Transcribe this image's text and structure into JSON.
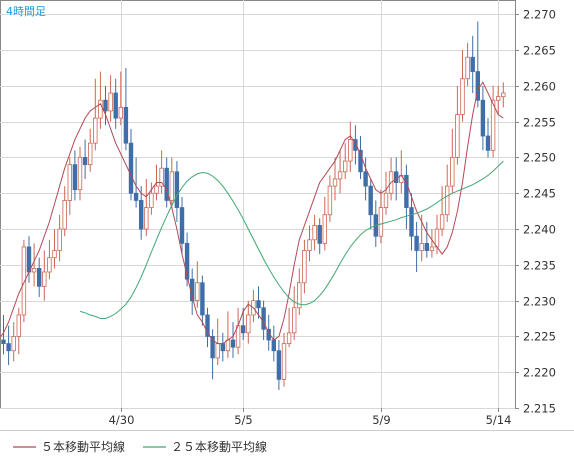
{
  "chart_data": {
    "type": "candlestick",
    "title": "4時間足",
    "y_axis_position": "right",
    "ylim": [
      2.215,
      2.272
    ],
    "yticks": [
      "2.215",
      "2.220",
      "2.225",
      "2.230",
      "2.235",
      "2.240",
      "2.245",
      "2.250",
      "2.255",
      "2.260",
      "2.265",
      "2.270"
    ],
    "xticks": [
      {
        "label": "4/30",
        "index": 23
      },
      {
        "label": "5/5",
        "index": 47
      },
      {
        "label": "5/9",
        "index": 74
      },
      {
        "label": "5/14",
        "index": 97
      }
    ],
    "grid": true,
    "legend_position": "bottom",
    "colors": {
      "up": "#cc6655",
      "down": "#3f6ea8",
      "ma5": "#b24a56",
      "ma25": "#40a870",
      "title": "#1e9bd7",
      "grid": "#d8d8d8",
      "axis": "#888888"
    },
    "series": [
      {
        "name": "５本移動平均線",
        "color": "#b24a56",
        "values": [
          2.2245,
          2.224,
          2.2245,
          2.2255,
          2.227,
          2.229,
          2.231,
          2.2325,
          2.234,
          2.2355,
          2.237,
          2.239,
          2.241,
          2.2435,
          2.246,
          2.2485,
          2.2505,
          2.2525,
          2.254,
          2.2555,
          2.2565,
          2.257,
          2.2575,
          2.256,
          2.254,
          2.252,
          2.2505,
          2.249,
          2.2475,
          2.246,
          2.245,
          2.2445,
          2.2455,
          2.2465,
          2.2465,
          2.2455,
          2.243,
          2.24,
          2.2365,
          2.2335,
          2.2305,
          2.228,
          2.227,
          2.2255,
          2.2245,
          2.224,
          2.224,
          2.2245,
          2.225,
          2.2265,
          2.2285,
          2.2295,
          2.229,
          2.228,
          2.227,
          2.2255,
          2.2245,
          2.225,
          2.2275,
          2.231,
          2.235,
          2.2385,
          2.2405,
          2.2425,
          2.2445,
          2.2465,
          2.2475,
          2.2485,
          2.2495,
          2.251,
          2.2525,
          2.253,
          2.252,
          2.2505,
          2.2485,
          2.247,
          2.2455,
          2.245,
          2.2455,
          2.2465,
          2.247,
          2.2475,
          2.2465,
          2.2445,
          2.2425,
          2.241,
          2.2395,
          2.2385,
          2.2375,
          2.2365,
          2.2375,
          2.2395,
          2.2425,
          2.2465,
          2.2515,
          2.256,
          2.2595,
          2.2605,
          2.259,
          2.2575,
          2.256,
          2.2555
        ]
      },
      {
        "name": "２５本移動平均線",
        "color": "#40a870",
        "values": [
          2.2285,
          2.2283,
          2.228,
          2.2278,
          2.2275,
          2.2275,
          2.2278,
          2.2282,
          2.2288,
          2.2295,
          2.2305,
          2.2318,
          2.2333,
          2.235,
          2.2368,
          2.2385,
          2.2402,
          2.2418,
          2.2433,
          2.2447,
          2.2458,
          2.2467,
          2.2473,
          2.2477,
          2.2479,
          2.2478,
          2.2474,
          2.2468,
          2.246,
          2.245,
          2.2439,
          2.2427,
          2.2414,
          2.24,
          2.2386,
          2.2372,
          2.2358,
          2.2345,
          2.2333,
          2.2322,
          2.2312,
          2.2304,
          2.2298,
          2.2295,
          2.2294,
          2.2296,
          2.23,
          2.2307,
          2.2316,
          2.2327,
          2.2339,
          2.2352,
          2.2364,
          2.2375,
          2.2384,
          2.2392,
          2.2398,
          2.2402,
          2.2405,
          2.2407,
          2.2409,
          2.2411,
          2.2413,
          2.2416,
          2.2418,
          2.242,
          2.2422,
          2.2425,
          2.2428,
          2.2432,
          2.2437,
          2.2442,
          2.2446,
          2.245,
          2.2453,
          2.2456,
          2.2459,
          2.2462,
          2.2466,
          2.247,
          2.2475,
          2.2481,
          2.2488,
          2.2495
        ]
      }
    ],
    "candles": [
      [
        2.2245,
        2.224,
        2.228,
        2.2225
      ],
      [
        2.224,
        2.223,
        2.2265,
        2.221
      ],
      [
        2.223,
        2.225,
        2.227,
        2.2215
      ],
      [
        2.225,
        2.228,
        2.229,
        2.2225
      ],
      [
        2.228,
        2.2375,
        2.2385,
        2.227
      ],
      [
        2.2375,
        2.234,
        2.239,
        2.2325
      ],
      [
        2.234,
        2.2345,
        2.238,
        2.232
      ],
      [
        2.2345,
        2.232,
        2.236,
        2.2305
      ],
      [
        2.232,
        2.234,
        2.237,
        2.23
      ],
      [
        2.234,
        2.236,
        2.2385,
        2.233
      ],
      [
        2.236,
        2.237,
        2.24,
        2.2345
      ],
      [
        2.237,
        2.24,
        2.242,
        2.2355
      ],
      [
        2.24,
        2.244,
        2.246,
        2.239
      ],
      [
        2.244,
        2.249,
        2.25,
        2.242
      ],
      [
        2.249,
        2.2455,
        2.251,
        2.244
      ],
      [
        2.2455,
        2.25,
        2.2515,
        2.244
      ],
      [
        2.25,
        2.249,
        2.2525,
        2.247
      ],
      [
        2.249,
        2.252,
        2.254,
        2.248
      ],
      [
        2.252,
        2.2555,
        2.261,
        2.251
      ],
      [
        2.2555,
        2.258,
        2.262,
        2.254
      ],
      [
        2.258,
        2.2565,
        2.26,
        2.2545
      ],
      [
        2.2565,
        2.259,
        2.2615,
        2.255
      ],
      [
        2.259,
        2.2555,
        2.261,
        2.254
      ],
      [
        2.2555,
        2.257,
        2.262,
        2.2545
      ],
      [
        2.257,
        2.252,
        2.2625,
        2.251
      ],
      [
        2.252,
        2.245,
        2.254,
        2.244
      ],
      [
        2.245,
        2.244,
        2.25,
        2.243
      ],
      [
        2.244,
        2.24,
        2.246,
        2.2385
      ],
      [
        2.24,
        2.243,
        2.247,
        2.239
      ],
      [
        2.243,
        2.245,
        2.2465,
        2.242
      ],
      [
        2.245,
        2.246,
        2.249,
        2.244
      ],
      [
        2.246,
        2.2485,
        2.251,
        2.245
      ],
      [
        2.2485,
        2.244,
        2.25,
        2.243
      ],
      [
        2.244,
        2.248,
        2.25,
        2.243
      ],
      [
        2.248,
        2.243,
        2.2495,
        2.241
      ],
      [
        2.243,
        2.238,
        2.2445,
        2.2365
      ],
      [
        2.238,
        2.233,
        2.2395,
        2.232
      ],
      [
        2.233,
        2.23,
        2.2345,
        2.228
      ],
      [
        2.23,
        2.2325,
        2.2355,
        2.229
      ],
      [
        2.2325,
        2.228,
        2.2335,
        2.2265
      ],
      [
        2.228,
        2.225,
        2.229,
        2.2235
      ],
      [
        2.225,
        2.222,
        2.226,
        2.219
      ],
      [
        2.222,
        2.224,
        2.2275,
        2.221
      ],
      [
        2.224,
        2.223,
        2.2255,
        2.2215
      ],
      [
        2.223,
        2.2245,
        2.2285,
        2.222
      ],
      [
        2.2245,
        2.2235,
        2.227,
        2.222
      ],
      [
        2.2235,
        2.2265,
        2.229,
        2.2225
      ],
      [
        2.2265,
        2.2255,
        2.229,
        2.2245
      ],
      [
        2.2255,
        2.228,
        2.23,
        2.224
      ],
      [
        2.228,
        2.23,
        2.2315,
        2.227
      ],
      [
        2.23,
        2.229,
        2.232,
        2.2275
      ],
      [
        2.229,
        2.226,
        2.23,
        2.2245
      ],
      [
        2.226,
        2.2245,
        2.228,
        2.223
      ],
      [
        2.2245,
        2.223,
        2.2265,
        2.2215
      ],
      [
        2.223,
        2.219,
        2.2245,
        2.2175
      ],
      [
        2.219,
        2.224,
        2.2255,
        2.218
      ],
      [
        2.224,
        2.2255,
        2.229,
        2.2235
      ],
      [
        2.2255,
        2.229,
        2.232,
        2.2245
      ],
      [
        2.229,
        2.2325,
        2.2345,
        2.228
      ],
      [
        2.2325,
        2.237,
        2.2385,
        2.231
      ],
      [
        2.237,
        2.2385,
        2.2405,
        2.2355
      ],
      [
        2.2385,
        2.2405,
        2.242,
        2.237
      ],
      [
        2.2405,
        2.238,
        2.2415,
        2.2365
      ],
      [
        2.238,
        2.242,
        2.2445,
        2.237
      ],
      [
        2.242,
        2.246,
        2.2475,
        2.241
      ],
      [
        2.246,
        2.247,
        2.25,
        2.244
      ],
      [
        2.247,
        2.248,
        2.251,
        2.245
      ],
      [
        2.248,
        2.2495,
        2.252,
        2.247
      ],
      [
        2.2495,
        2.2525,
        2.255,
        2.248
      ],
      [
        2.2525,
        2.251,
        2.2545,
        2.249
      ],
      [
        2.251,
        2.248,
        2.253,
        2.247
      ],
      [
        2.248,
        2.246,
        2.25,
        2.244
      ],
      [
        2.246,
        2.242,
        2.247,
        2.24
      ],
      [
        2.242,
        2.239,
        2.244,
        2.2375
      ],
      [
        2.239,
        2.243,
        2.2455,
        2.238
      ],
      [
        2.243,
        2.245,
        2.248,
        2.242
      ],
      [
        2.245,
        2.248,
        2.25,
        2.244
      ],
      [
        2.248,
        2.2465,
        2.25,
        2.244
      ],
      [
        2.2465,
        2.2475,
        2.251,
        2.245
      ],
      [
        2.2475,
        2.243,
        2.249,
        2.24
      ],
      [
        2.243,
        2.239,
        2.245,
        2.237
      ],
      [
        2.239,
        2.237,
        2.241,
        2.234
      ],
      [
        2.237,
        2.238,
        2.242,
        2.2355
      ],
      [
        2.238,
        2.237,
        2.241,
        2.236
      ],
      [
        2.237,
        2.2375,
        2.24,
        2.236
      ],
      [
        2.2375,
        2.24,
        2.242,
        2.2365
      ],
      [
        2.24,
        2.242,
        2.246,
        2.239
      ],
      [
        2.242,
        2.246,
        2.249,
        2.241
      ],
      [
        2.246,
        2.25,
        2.254,
        2.245
      ],
      [
        2.25,
        2.256,
        2.26,
        2.249
      ],
      [
        2.256,
        2.261,
        2.265,
        2.255
      ],
      [
        2.261,
        2.264,
        2.266,
        2.26
      ],
      [
        2.264,
        2.262,
        2.267,
        2.259
      ],
      [
        2.262,
        2.258,
        2.269,
        2.257
      ],
      [
        2.258,
        2.253,
        2.26,
        2.251
      ],
      [
        2.253,
        2.251,
        2.2555,
        2.25
      ],
      [
        2.251,
        2.258,
        2.26,
        2.25
      ],
      [
        2.258,
        2.2585,
        2.26,
        2.256
      ],
      [
        2.2585,
        2.259,
        2.2605,
        2.257
      ]
    ]
  },
  "legend": {
    "ma5_label": "５本移動平均線",
    "ma25_label": "２５本移動平均線"
  }
}
